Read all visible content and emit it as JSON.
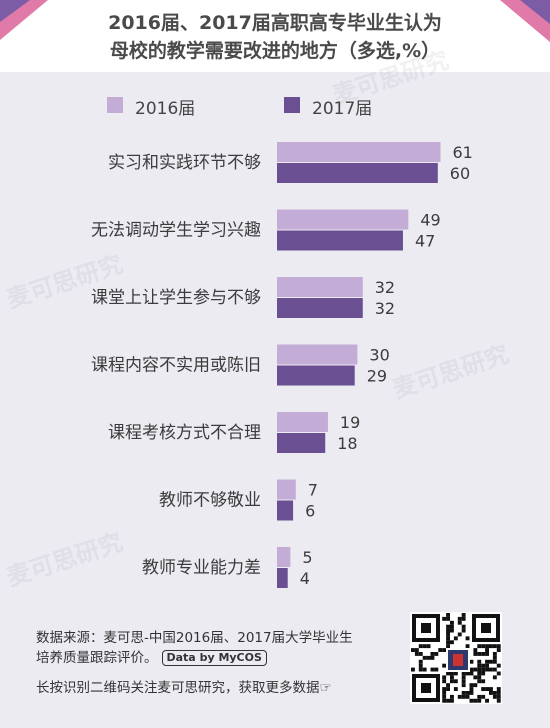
{
  "colors": {
    "series_2016": "#c3acd6",
    "series_2017": "#6a4f93",
    "header_pink": "#e07aa8",
    "header_purple": "#7d5ca6"
  },
  "title": {
    "line1": "2016届、2017届高职高专毕业生认为",
    "line2": "母校的教学需要改进的地方（多选,%）"
  },
  "legend": {
    "item_2016": "2016届",
    "item_2017": "2017届"
  },
  "chart_data": {
    "type": "bar",
    "orientation": "horizontal",
    "categories": [
      "实习和实践环节不够",
      "无法调动学生学习兴趣",
      "课堂上让学生参与不够",
      "课程内容不实用或陈旧",
      "课程考核方式不合理",
      "教师不够敬业",
      "教师专业能力差"
    ],
    "series": [
      {
        "name": "2016届",
        "values": [
          61,
          49,
          32,
          30,
          19,
          7,
          5
        ]
      },
      {
        "name": "2017届",
        "values": [
          60,
          47,
          32,
          29,
          18,
          6,
          4
        ]
      }
    ],
    "title": "2016届、2017届高职高专毕业生认为母校的教学需要改进的地方（多选,%）",
    "legend_position": "top-left",
    "grid": false
  },
  "watermark_text": "麦可思研究",
  "footer": {
    "source_line1": "数据来源：麦可思-中国2016届、2017届大学毕业生",
    "source_line2": "培养质量跟踪评价。",
    "badge": "Data by MyCOS",
    "cta": "长按识别二维码关注麦可思研究，获取更多数据☞"
  },
  "icons": {
    "qr": "qr-code-icon",
    "pointer": "pointing-hand-icon"
  }
}
